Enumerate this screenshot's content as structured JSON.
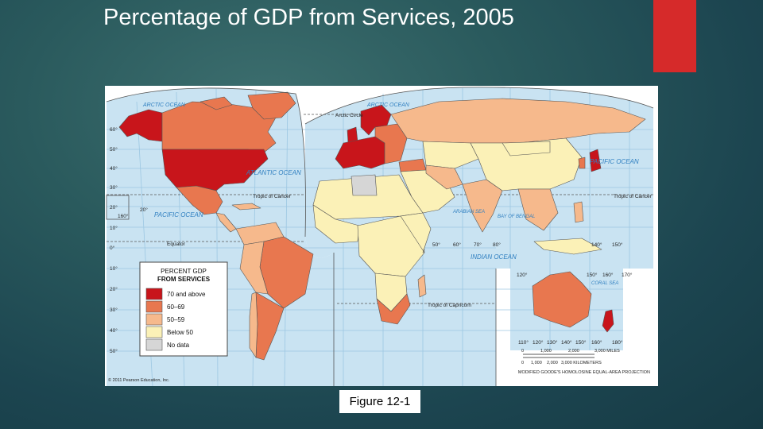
{
  "slide": {
    "title": "Percentage of GDP from Services, 2005",
    "caption": "Figure 12-1",
    "accent_color": "#d62a2a"
  },
  "map": {
    "ocean_labels": {
      "arctic_w": "ARCTIC OCEAN",
      "arctic_e": "ARCTIC OCEAN",
      "atlantic": "ATLANTIC OCEAN",
      "pacific_w": "PACIFIC OCEAN",
      "pacific_e": "PACIFIC OCEAN",
      "indian": "INDIAN OCEAN",
      "arabian": "ARABIAN SEA",
      "bengal": "BAY OF BENGAL",
      "coral": "CORAL SEA"
    },
    "lines": {
      "arctic_circle": "Arctic Circle",
      "cancer_w": "Tropic of Cancer",
      "cancer_e": "Tropic of Cancer",
      "equator": "Equator",
      "capricorn": "Tropic of Capricorn"
    },
    "lat_left": [
      "60°",
      "50°",
      "40°",
      "30°",
      "20°",
      "10°",
      "0°",
      "10°",
      "20°",
      "30°",
      "40°",
      "50°"
    ],
    "lon_labels": [
      "50°",
      "60°",
      "70°",
      "80°",
      "140°",
      "150°",
      "120°",
      "150°",
      "160°",
      "170°",
      "110°",
      "120°",
      "130°",
      "140°",
      "150°",
      "160°",
      "180°",
      "160°",
      "20°"
    ],
    "legend": {
      "title_line1": "PERCENT GDP",
      "title_line2": "FROM SERVICES",
      "items": [
        {
          "label": "70 and above",
          "color": "#c8151b"
        },
        {
          "label": "60–69",
          "color": "#e8774f"
        },
        {
          "label": "50–59",
          "color": "#f6b98c"
        },
        {
          "label": "Below 50",
          "color": "#fbf1b7"
        },
        {
          "label": "No data",
          "color": "#d6d6d6"
        }
      ]
    },
    "scale": {
      "miles": [
        "0",
        "1,000",
        "2,000",
        "3,000 MILES"
      ],
      "km": [
        "0",
        "1,000",
        "2,000",
        "3,000 KILOMETERS"
      ]
    },
    "projection": "MODIFIED GOODE'S HOMOLOSINE EQUAL-AREA PROJECTION",
    "copyright": "© 2011 Pearson Education, Inc.",
    "colors": {
      "ocean": "#c9e3f2",
      "grid": "#9cc7e2",
      "border": "#555555"
    }
  }
}
